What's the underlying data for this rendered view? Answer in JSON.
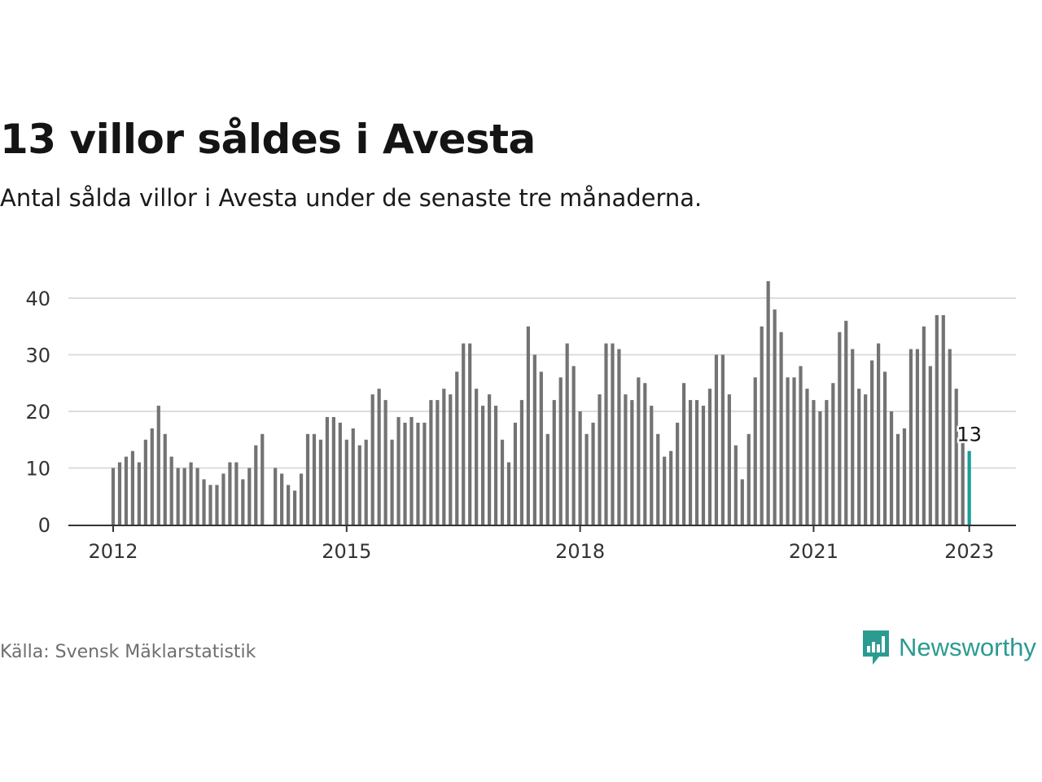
{
  "header": {
    "title": "13 villor såldes i Avesta",
    "subtitle": "Antal sålda villor i Avesta under de senaste tre månaderna."
  },
  "footer": {
    "source": "Källa: Svensk Mäklarstatistik",
    "brand": "Newsworthy",
    "brand_icon": "bar-chart-bubble-icon"
  },
  "colors": {
    "bar": "#737373",
    "highlight": "#1a9e99",
    "grid": "#dddddd",
    "axis": "#333333",
    "brand": "#2b9b92"
  },
  "chart_data": {
    "type": "bar",
    "title": "13 villor såldes i Avesta",
    "subtitle": "Antal sålda villor i Avesta under de senaste tre månaderna.",
    "xlabel": "",
    "ylabel": "",
    "ylim": [
      0,
      43
    ],
    "yticks": [
      0,
      10,
      20,
      30,
      40
    ],
    "xticks": [
      "2012",
      "2015",
      "2018",
      "2021",
      "2023"
    ],
    "grid": true,
    "x_start": "2012-01",
    "x_end": "2023-01",
    "highlight_label": "13",
    "values": [
      10,
      11,
      12,
      13,
      11,
      15,
      17,
      21,
      16,
      12,
      10,
      10,
      11,
      10,
      8,
      7,
      7,
      9,
      11,
      11,
      8,
      10,
      14,
      16,
      null,
      10,
      9,
      7,
      6,
      9,
      16,
      16,
      15,
      19,
      19,
      18,
      15,
      17,
      14,
      15,
      23,
      24,
      22,
      15,
      19,
      18,
      19,
      18,
      18,
      22,
      22,
      24,
      23,
      27,
      32,
      32,
      24,
      21,
      23,
      21,
      15,
      11,
      18,
      22,
      35,
      30,
      27,
      16,
      22,
      26,
      32,
      28,
      20,
      16,
      18,
      23,
      32,
      32,
      31,
      23,
      22,
      26,
      25,
      21,
      16,
      12,
      13,
      18,
      25,
      22,
      22,
      21,
      24,
      30,
      30,
      23,
      14,
      8,
      16,
      26,
      35,
      43,
      38,
      34,
      26,
      26,
      28,
      24,
      22,
      20,
      22,
      25,
      34,
      36,
      31,
      24,
      23,
      29,
      32,
      27,
      20,
      16,
      17,
      31,
      31,
      35,
      28,
      37,
      37,
      31,
      24,
      15,
      13
    ]
  }
}
